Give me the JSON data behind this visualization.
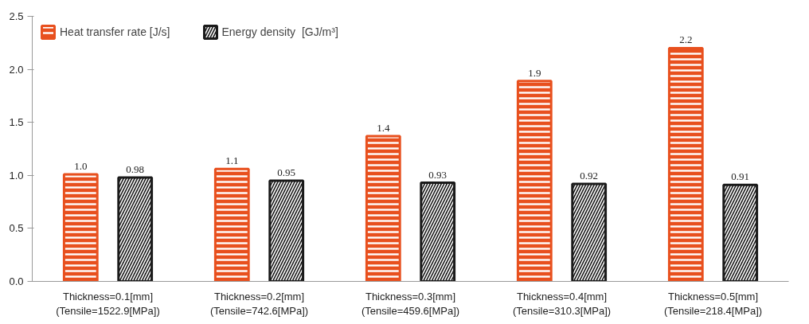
{
  "chart_data": {
    "type": "bar",
    "categories": [
      "Thickness=0.1[mm]\n(Tensile=1522.9[MPa])",
      "Thickness=0.2[mm]\n(Tensile=742.6[MPa])",
      "Thickness=0.3[mm]\n(Tensile=459.6[MPa])",
      "Thickness=0.4[mm]\n(Tensile=310.3[MPa])",
      "Thickness=0.5[mm]\n(Tensile=218.4[MPa])"
    ],
    "series": [
      {
        "name": "Heat transfer rate [J/s]",
        "color": "#e8501e",
        "values": [
          1.01,
          1.06,
          1.37,
          1.89,
          2.2
        ],
        "value_labels": [
          "1.0",
          "1.1",
          "1.4",
          "1.9",
          "2.2"
        ]
      },
      {
        "name": "Energy density  [GJ/m³]",
        "color": "#1a1a1a",
        "values": [
          0.98,
          0.95,
          0.93,
          0.92,
          0.91
        ],
        "value_labels": [
          "0.98",
          "0.95",
          "0.93",
          "0.92",
          "0.91"
        ]
      }
    ],
    "ylim": [
      0,
      2.5
    ],
    "yticks": [
      {
        "value": 0,
        "label": "0.0"
      },
      0.5,
      {
        "value": 1,
        "label": "1.0"
      },
      1.5,
      {
        "value": 2,
        "label": "2.0"
      },
      2.5
    ],
    "grid": false,
    "legend": "top left"
  }
}
